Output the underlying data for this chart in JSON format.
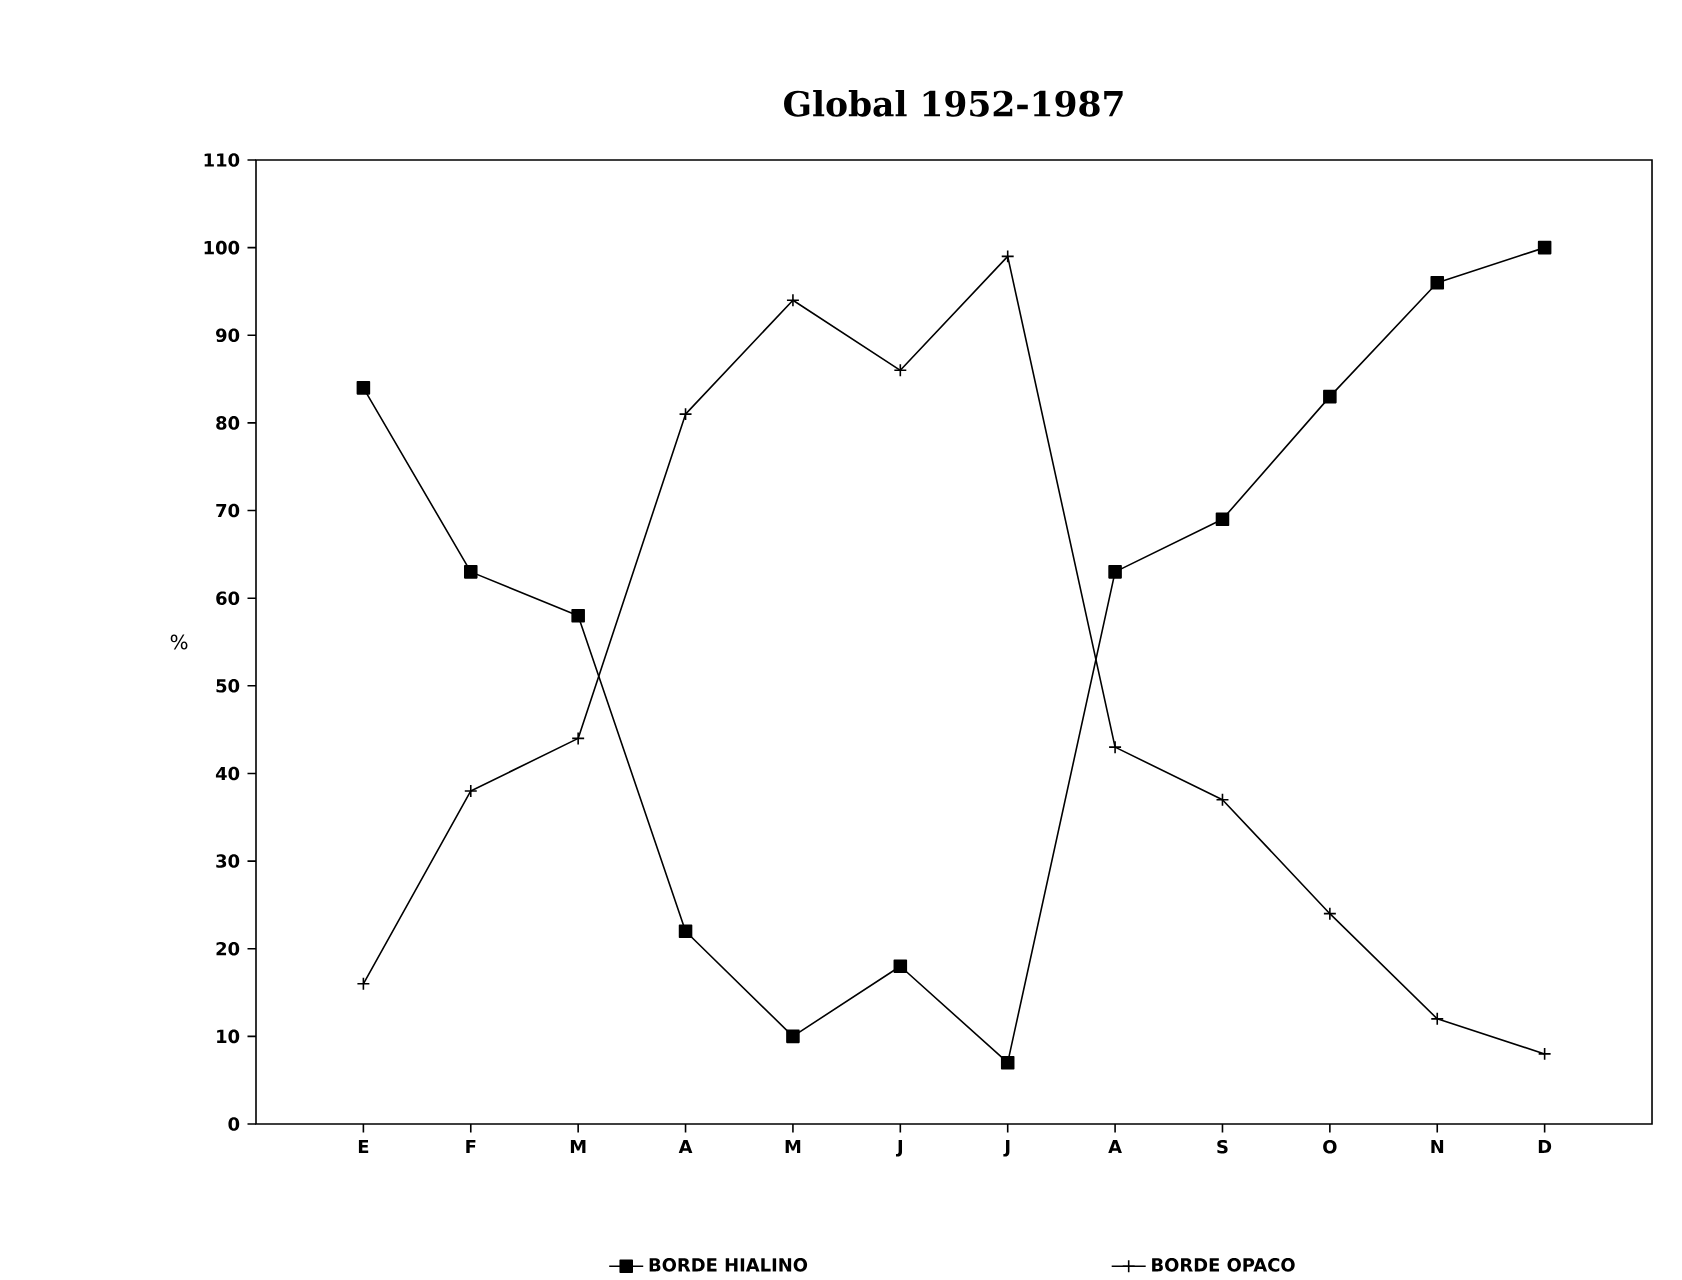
{
  "chart_data": {
    "type": "line",
    "title": "Global 1952-1987",
    "ylabel": "%",
    "categories": [
      "E",
      "F",
      "M",
      "A",
      "M",
      "J",
      "J",
      "A",
      "S",
      "O",
      "N",
      "D"
    ],
    "series": [
      {
        "name": "BORDE HIALINO",
        "color": "#000000",
        "marker": "square",
        "values": [
          84,
          63,
          58,
          22,
          10,
          18,
          7,
          63,
          69,
          83,
          96,
          100
        ]
      },
      {
        "name": "BORDE OPACO",
        "color": "#000000",
        "marker": "cross",
        "values": [
          16,
          38,
          44,
          81,
          94,
          86,
          99,
          43,
          37,
          24,
          12,
          8
        ]
      }
    ],
    "ylim": [
      0,
      110
    ],
    "yticks": [
      0,
      10,
      20,
      30,
      40,
      50,
      60,
      70,
      80,
      90,
      100,
      110
    ],
    "grid": false,
    "legend": "bottom",
    "line_style": "solid"
  }
}
